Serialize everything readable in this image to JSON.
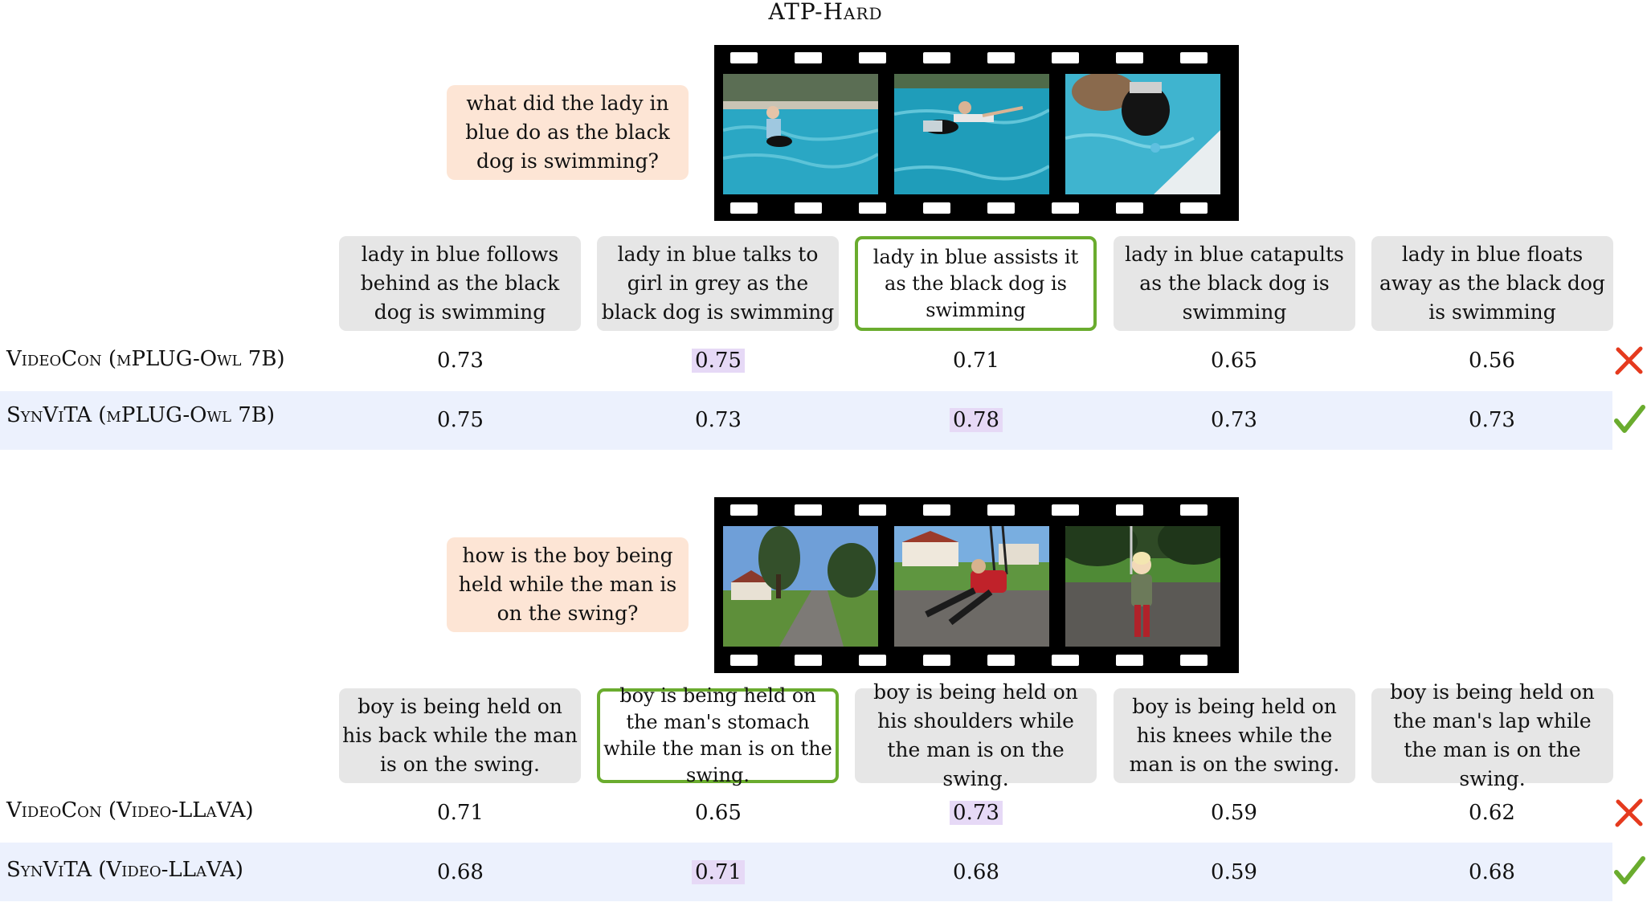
{
  "title": "ATP-Hard",
  "panels": [
    {
      "question": "what did the lady in blue do as the black dog is swimming?",
      "frames": [
        "pool-frame-1",
        "pool-frame-2",
        "pool-frame-3"
      ],
      "options": [
        "lady in blue follows behind as the black dog is swimming",
        "lady in blue talks to girl in grey as the black dog is swimming",
        "lady in blue assists it as the black dog is swimming",
        "lady in blue catapults as the black dog is swimming",
        "lady in blue floats away as the black dog is swimming"
      ],
      "correct_index": 2,
      "rows": [
        {
          "model": "VideoCon (mPLUG-Owl 7B)",
          "scores": [
            "0.73",
            "0.75",
            "0.71",
            "0.65",
            "0.56"
          ],
          "highlight_index": 1,
          "result": "cross"
        },
        {
          "model": "SynViTA (mPLUG-Owl 7B)",
          "scores": [
            "0.75",
            "0.73",
            "0.78",
            "0.73",
            "0.73"
          ],
          "highlight_index": 2,
          "result": "check"
        }
      ]
    },
    {
      "question": "how is the boy being held while the man is on the swing?",
      "frames": [
        "park-frame-1",
        "park-frame-2",
        "park-frame-3"
      ],
      "options": [
        "boy is being held on his back while the man is on the swing.",
        "boy is being held on the man's stomach while the man is on the swing.",
        "boy is being held on his shoulders while the man is on the swing.",
        "boy is being held on his knees while the man is on the swing.",
        "boy is being held on the man's lap while the man is on the swing."
      ],
      "correct_index": 1,
      "rows": [
        {
          "model": "VideoCon (Video-LLaVA)",
          "scores": [
            "0.71",
            "0.65",
            "0.73",
            "0.59",
            "0.62"
          ],
          "highlight_index": 2,
          "result": "cross"
        },
        {
          "model": "SynViTA (Video-LLaVA)",
          "scores": [
            "0.68",
            "0.71",
            "0.68",
            "0.59",
            "0.68"
          ],
          "highlight_index": 1,
          "result": "check"
        }
      ]
    }
  ],
  "colors": {
    "question_bg": "#fde5d5",
    "option_bg": "#e6e6e6",
    "correct_border": "#6aac2e",
    "highlight": "#e6d9f6",
    "band": "#ecf1fd",
    "cross": "#e53a1e",
    "check": "#6aac2e"
  }
}
